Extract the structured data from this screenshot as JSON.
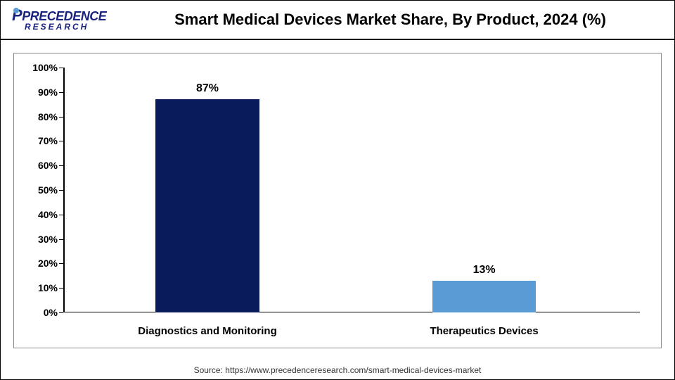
{
  "logo": {
    "top": "PRECEDENCE",
    "bottom": "RESEARCH"
  },
  "title": "Smart Medical Devices Market Share, By Product, 2024 (%)",
  "chart": {
    "type": "bar",
    "ylim": [
      0,
      100
    ],
    "ytick_step": 10,
    "yticks": [
      "0%",
      "10%",
      "20%",
      "30%",
      "40%",
      "50%",
      "60%",
      "70%",
      "80%",
      "90%",
      "100%"
    ],
    "categories": [
      "Diagnostics and Monitoring",
      "Therapeutics Devices"
    ],
    "values": [
      87,
      13
    ],
    "value_labels": [
      "87%",
      "13%"
    ],
    "bar_colors": [
      "#0a1b5c",
      "#5b9bd5"
    ],
    "bar_width_pct": 18,
    "bar_positions_pct": [
      16,
      64
    ],
    "background_color": "#ffffff",
    "axis_color": "#000000",
    "label_fontsize": 15,
    "value_fontsize": 16
  },
  "source": "Source: https://www.precedenceresearch.com/smart-medical-devices-market"
}
